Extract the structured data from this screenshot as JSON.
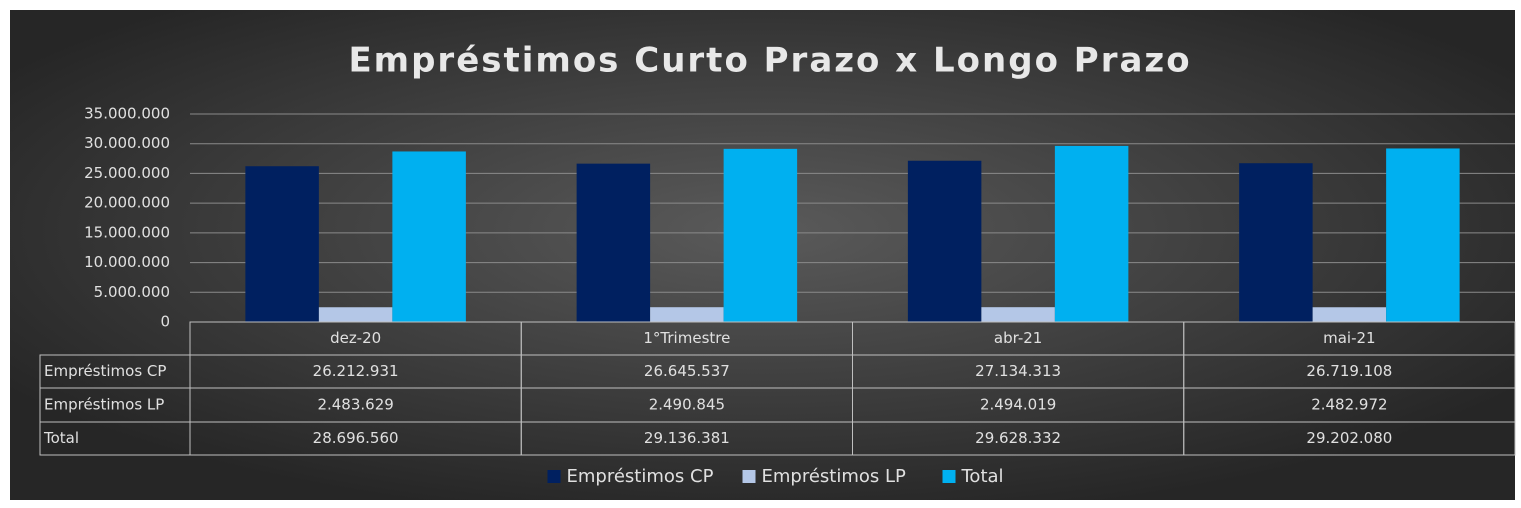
{
  "chart_data": {
    "type": "bar",
    "title": "Empréstimos Curto Prazo x Longo Prazo",
    "categories": [
      "dez-20",
      "1°Trimestre",
      "abr-21",
      "mai-21"
    ],
    "series": [
      {
        "name": "Empréstimos CP",
        "color": "#002060",
        "values": [
          26212931,
          26645537,
          27134313,
          26719108
        ],
        "value_labels": [
          "26.212.931",
          "26.645.537",
          "27.134.313",
          "26.719.108"
        ]
      },
      {
        "name": "Empréstimos LP",
        "color": "#b4c7e7",
        "values": [
          2483629,
          2490845,
          2494019,
          2482972
        ],
        "value_labels": [
          "2.483.629",
          "2.490.845",
          "2.494.019",
          "2.482.972"
        ]
      },
      {
        "name": "Total",
        "color": "#00b0f0",
        "values": [
          28696560,
          29136381,
          29628332,
          29202080
        ],
        "value_labels": [
          "28.696.560",
          "29.136.381",
          "29.628.332",
          "29.202.080"
        ]
      }
    ],
    "ylim": [
      0,
      35000000
    ],
    "yticks": [
      0,
      {
        "value": 5000000,
        "label": "5.000.000"
      },
      {
        "value": 10000000,
        "label": "10.000.000"
      },
      {
        "value": 15000000,
        "label": "15.000.000"
      },
      {
        "value": 20000000,
        "label": "20.000.000"
      },
      {
        "value": 25000000,
        "label": "25.000.000"
      },
      {
        "value": 30000000,
        "label": "30.000.000"
      },
      {
        "value": 35000000,
        "label": "35.000.000"
      }
    ],
    "grid": true,
    "data_table": true,
    "legend": "bottom"
  }
}
